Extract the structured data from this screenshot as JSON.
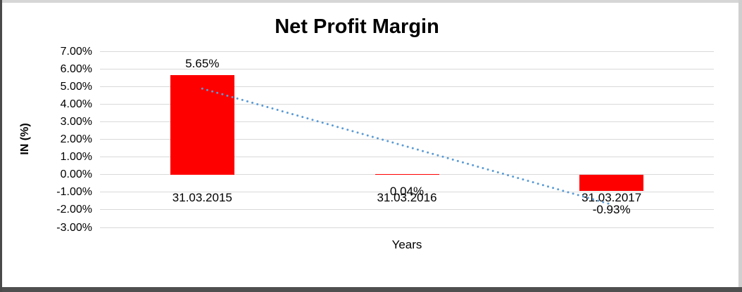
{
  "chart_data": {
    "type": "bar",
    "title": "Net Profit Margin",
    "xlabel": "Years",
    "ylabel": "IN (%)",
    "categories": [
      "31.03.2015",
      "31.03.2016",
      "31.03.2017"
    ],
    "series": [
      {
        "name": "Net Profit Margin",
        "values": [
          5.65,
          0.04,
          -0.93
        ]
      }
    ],
    "data_labels": [
      "5.65%",
      "0.04%",
      "-0.93%"
    ],
    "ylim": [
      -3,
      7
    ],
    "ytick_step": 1,
    "ytick_labels": [
      "7.00%",
      "6.00%",
      "5.00%",
      "4.00%",
      "3.00%",
      "2.00%",
      "1.00%",
      "0.00%",
      "-1.00%",
      "-2.00%",
      "-3.00%"
    ],
    "grid": "horizontal",
    "legend": "none",
    "bar_color": "#FF0000",
    "gridline_color": "#D9D9D9",
    "trendline": {
      "type": "linear",
      "style": "dotted",
      "color": "#5B9BD5",
      "start_value": 4.88,
      "end_value": -1.7
    }
  }
}
